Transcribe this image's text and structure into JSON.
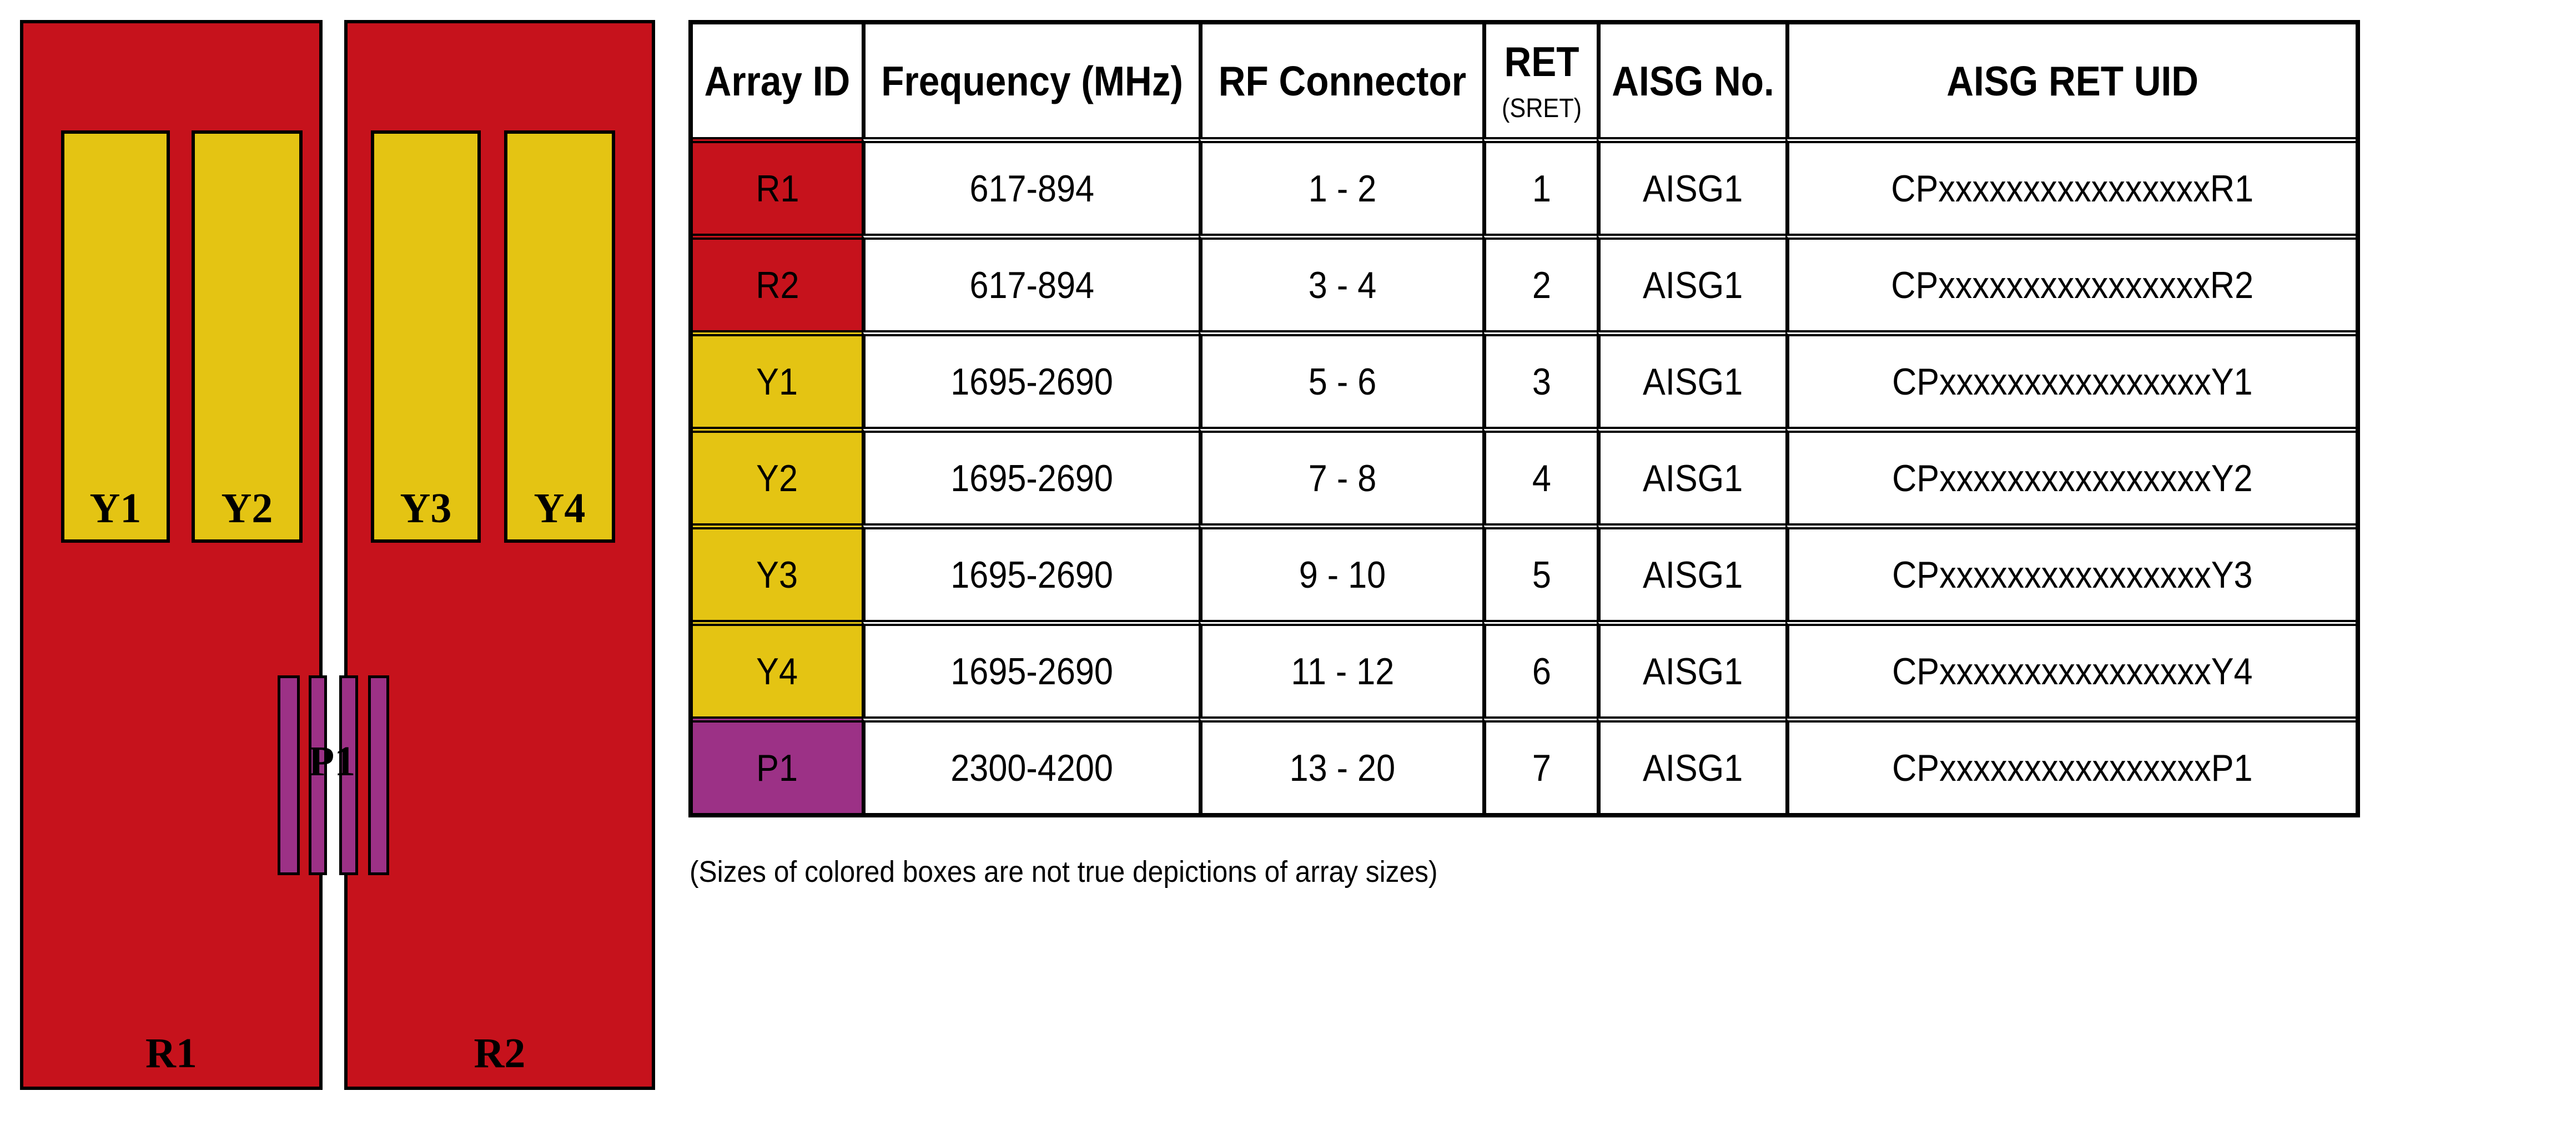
{
  "colors": {
    "red": "#C6121C",
    "yellow": "#E4C413",
    "purple": "#9C3186",
    "border": "#000000"
  },
  "diagram": {
    "panels": [
      {
        "id": "R1",
        "label": "R1",
        "color": "red"
      },
      {
        "id": "R2",
        "label": "R2",
        "color": "red"
      }
    ],
    "arrays": [
      {
        "id": "Y1",
        "label": "Y1",
        "color": "yellow"
      },
      {
        "id": "Y2",
        "label": "Y2",
        "color": "yellow"
      },
      {
        "id": "Y3",
        "label": "Y3",
        "color": "yellow"
      },
      {
        "id": "Y4",
        "label": "Y4",
        "color": "yellow"
      }
    ],
    "p1_label": "P1",
    "p1_bar_count": 4
  },
  "table": {
    "headers": [
      {
        "key": "array_id",
        "label": "Array ID"
      },
      {
        "key": "frequency",
        "label": "Frequency (MHz)"
      },
      {
        "key": "rf_connector",
        "label": "RF Connector"
      },
      {
        "key": "ret",
        "label": "RET",
        "sublabel": "(SRET)"
      },
      {
        "key": "aisg_no",
        "label": "AISG No."
      },
      {
        "key": "aisg_ret_uid",
        "label": "AISG RET UID"
      }
    ],
    "rows": [
      {
        "color": "red",
        "values": [
          "R1",
          "617-894",
          "1 - 2",
          "1",
          "AISG1",
          "CPxxxxxxxxxxxxxxxxR1"
        ]
      },
      {
        "color": "red",
        "values": [
          "R2",
          "617-894",
          "3 - 4",
          "2",
          "AISG1",
          "CPxxxxxxxxxxxxxxxxR2"
        ]
      },
      {
        "color": "yellow",
        "values": [
          "Y1",
          "1695-2690",
          "5 - 6",
          "3",
          "AISG1",
          "CPxxxxxxxxxxxxxxxxY1"
        ]
      },
      {
        "color": "yellow",
        "values": [
          "Y2",
          "1695-2690",
          "7 - 8",
          "4",
          "AISG1",
          "CPxxxxxxxxxxxxxxxxY2"
        ]
      },
      {
        "color": "yellow",
        "values": [
          "Y3",
          "1695-2690",
          "9 - 10",
          "5",
          "AISG1",
          "CPxxxxxxxxxxxxxxxxY3"
        ]
      },
      {
        "color": "yellow",
        "values": [
          "Y4",
          "1695-2690",
          "11 - 12",
          "6",
          "AISG1",
          "CPxxxxxxxxxxxxxxxxY4"
        ]
      },
      {
        "color": "purple",
        "values": [
          "P1",
          "2300-4200",
          "13 - 20",
          "7",
          "AISG1",
          "CPxxxxxxxxxxxxxxxxP1"
        ]
      }
    ]
  },
  "note": "(Sizes of colored boxes are not true depictions of array sizes)"
}
